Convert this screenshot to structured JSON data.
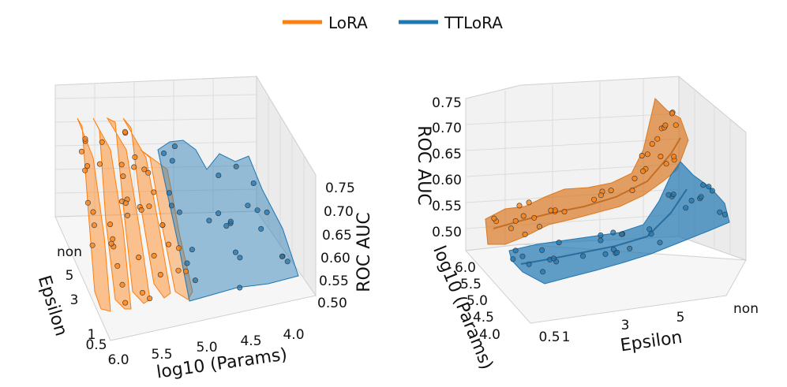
{
  "legend": {
    "placement": "top-center",
    "items": [
      {
        "name": "LoRA",
        "color": "#ff7f0e"
      },
      {
        "name": "TTLoRA",
        "color": "#1f77b4"
      }
    ]
  },
  "chart_data": [
    {
      "type": "surface3d",
      "title": "",
      "xlabel": "Epsilon",
      "ylabel": "log10 (Params)",
      "zlabel": "ROC AUC",
      "epsilon_ticks": [
        "0.5",
        "1",
        "3",
        "5",
        "non"
      ],
      "params_ticks": [
        "6.0",
        "5.5",
        "5.0",
        "4.5",
        "4.0"
      ],
      "roc_ticks": [
        "0.50",
        "0.55",
        "0.60",
        "0.65",
        "0.70",
        "0.75"
      ],
      "zlim": [
        0.49,
        0.76
      ],
      "series": [
        {
          "name": "LoRA",
          "color": "#ff7f0e",
          "log10_params_range": [
            5.0,
            6.0
          ],
          "roc_auc_range": [
            0.49,
            0.76
          ]
        },
        {
          "name": "TTLoRA",
          "color": "#1f77b4",
          "log10_params_range": [
            4.0,
            5.0
          ],
          "roc_auc_range": [
            0.5,
            0.72
          ]
        }
      ]
    },
    {
      "type": "surface3d",
      "title": "",
      "xlabel": "Epsilon",
      "ylabel": "log10 (Params)",
      "zlabel": "ROC AUC",
      "epsilon_ticks": [
        "0.5",
        "1",
        "3",
        "5",
        "non"
      ],
      "params_ticks": [
        "6.0",
        "5.5",
        "5.0",
        "4.5",
        "4.0"
      ],
      "roc_ticks": [
        "0.50",
        "0.55",
        "0.60",
        "0.65",
        "0.70",
        "0.75"
      ],
      "zlim": [
        0.48,
        0.76
      ],
      "series": [
        {
          "name": "LoRA",
          "color": "#ff7f0e",
          "log10_params_range": [
            5.0,
            6.0
          ],
          "roc_auc_range": [
            0.5,
            0.75
          ]
        },
        {
          "name": "TTLoRA",
          "color": "#1f77b4",
          "log10_params_range": [
            4.0,
            5.0
          ],
          "roc_auc_range": [
            0.48,
            0.68
          ]
        }
      ]
    }
  ]
}
